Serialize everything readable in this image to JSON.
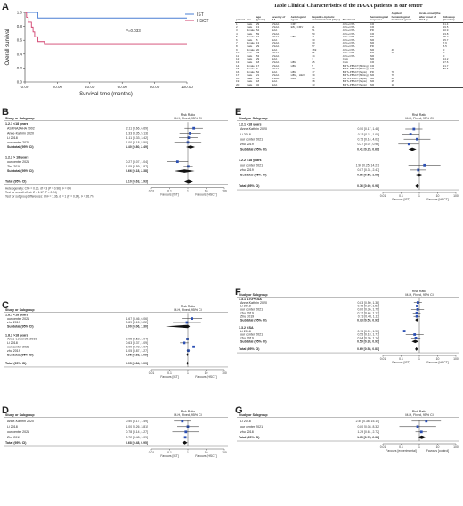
{
  "panel_a": {
    "label": "A",
    "y_axis_label": "Overall survival",
    "x_axis_label": "Survival time (months)",
    "y_ticks": [
      "0.0",
      "0.2",
      "0.4",
      "0.6",
      "0.8",
      "1.0"
    ],
    "x_ticks": [
      "0.00",
      "20.00",
      "40.00",
      "60.00",
      "80.00",
      "100.00"
    ],
    "p_value": "P=0.033",
    "legend": [
      {
        "name": "IST",
        "color": "#4a7fd4"
      },
      {
        "name": "HSCT",
        "color": "#d2416e"
      }
    ],
    "chart_data": {
      "type": "line",
      "xlabel": "Survival time (months)",
      "ylabel": "Overall survival",
      "xlim": [
        0,
        100
      ],
      "ylim": [
        0,
        1
      ],
      "series": [
        {
          "name": "IST",
          "color": "#4a7fd4",
          "x": [
            0,
            3,
            8,
            30,
            60,
            100
          ],
          "y": [
            1,
            1,
            0.92,
            0.92,
            0.92,
            0.92
          ]
        },
        {
          "name": "HSCT",
          "color": "#d2416e",
          "x": [
            0,
            1,
            2,
            4,
            5,
            6,
            8,
            12,
            20,
            100
          ],
          "y": [
            1,
            0.93,
            0.86,
            0.79,
            0.72,
            0.65,
            0.58,
            0.55,
            0.55,
            0.55
          ]
        }
      ]
    }
  },
  "table": {
    "title": "Table Clinical Characteristics of the HAAA patients in our center",
    "headers": [
      "patient",
      "sex",
      "age (years)",
      "severity of AA",
      "Aetiological agent",
      "Hepatitis-Aplastic anemia interval (days)",
      "Treatment",
      "hematological response",
      "Applied hematological treatment grade",
      "Acute-onset (the after onset of HAAA)",
      "follow up (months)"
    ],
    "rows": [
      [
        "1",
        "male",
        "29",
        "VSAA",
        "CMV",
        "",
        "ATG+CSA",
        "CR",
        "",
        "",
        "41.4"
      ],
      [
        "2",
        "male",
        "13",
        "VSAA",
        "EB、CMV",
        "21",
        "ATG+CSA",
        "CR",
        "",
        "",
        "19.5"
      ],
      [
        "3",
        "female",
        "54",
        "SAA",
        "",
        "51",
        "ATG+CSA",
        "PR",
        "",
        "",
        "10.9"
      ],
      [
        "4",
        "male",
        "59",
        "VSAA",
        "",
        "50",
        "ATG+CSA",
        "CR",
        "",
        "",
        "23.8"
      ],
      [
        "5",
        "female",
        "16",
        "VSAA",
        "HBV",
        "11",
        "ATG+CSA",
        "PR",
        "",
        "",
        "25.2"
      ],
      [
        "6",
        "male",
        "5",
        "SAA",
        "",
        "30",
        "ATG+CSA",
        "NR",
        "",
        "",
        "15.7"
      ],
      [
        "7",
        "female",
        "13",
        "VSAA",
        "",
        "30",
        "ATG+CSA",
        "NR",
        "",
        "",
        "7.9"
      ],
      [
        "8",
        "male",
        "29",
        "VSAA",
        "",
        "57",
        "ATG+CSA",
        "PR",
        "",
        "",
        "5.5"
      ],
      [
        "9",
        "female",
        "20",
        "SAA",
        "",
        "169",
        "ATG+CSA",
        "NR",
        "46",
        "",
        "0"
      ],
      [
        "10",
        "male",
        "48",
        "VSAA",
        "",
        "66",
        "ATG+CSA",
        "NR",
        "20",
        "",
        "0"
      ],
      [
        "11",
        "male",
        "53",
        "VSAA",
        "",
        "14",
        "ATG+CSA",
        "NR",
        "",
        "",
        "0"
      ],
      [
        "12",
        "male",
        "29",
        "SAA",
        "",
        "7",
        "CSA",
        "NR",
        "",
        "",
        "14.2"
      ],
      [
        "13",
        "male",
        "18",
        "VSAA",
        "HBV",
        "25",
        "CSA",
        "CR",
        "",
        "",
        "27.6"
      ],
      [
        "14",
        "female",
        "17",
        "VSAA",
        "HBV",
        "5",
        "BMT+PBSCT(Sibling)",
        "CR",
        "",
        "",
        "21.7"
      ],
      [
        "15",
        "female",
        "9",
        "VSAA",
        "",
        "30",
        "BMT+PBSCT(Sibling)",
        "CR",
        "",
        "",
        "80.6"
      ],
      [
        "16",
        "female",
        "52",
        "SAA",
        "HBV",
        "17",
        "BMT+PBSCT(haplo)",
        "PR",
        "78",
        "",
        ""
      ],
      [
        "17",
        "male",
        "21",
        "VSAA",
        "HBV、HEV",
        "79",
        "BMT+PBSCT(Sibling)",
        "NR",
        "76",
        "",
        ""
      ],
      [
        "18",
        "male",
        "44",
        "VSAA",
        "HBV",
        "33",
        "BMT+PBSCT(haplo)",
        "NR",
        "28",
        "",
        ""
      ],
      [
        "19",
        "male",
        "18",
        "SAA",
        "",
        "38",
        "BMT+PBSCT(haplo)",
        "NR",
        "25",
        "",
        ""
      ],
      [
        "20",
        "male",
        "32",
        "SAA",
        "",
        "13",
        "BMT+PBSCT(haplo)",
        "NR",
        "18",
        "",
        ""
      ]
    ]
  },
  "panel_b": {
    "label": "B",
    "chart_data": {
      "type": "forest",
      "xlabel_left": "Favours [IST]",
      "xlabel_right": "Favours [HSCT]",
      "xticks": [
        "0.01",
        "0.1",
        "1",
        "10",
        "100"
      ],
      "groups": [
        {
          "name": "1.2.1 <18 years",
          "studies": [
            {
              "study": "ASRNAZAHA 2002",
              "rr": 2.11,
              "lo": 0.66,
              "hi": 6.69
            },
            {
              "study": "Anne-Kathrin 2020",
              "rr": 1.33,
              "lo": 0.35,
              "hi": 5.13
            },
            {
              "study": "Li 2018",
              "rr": 1.11,
              "lo": 0.33,
              "hi": 3.42
            },
            {
              "study": "our center 2021",
              "rr": 1.0,
              "lo": 0.18,
              "hi": 5.5
            }
          ],
          "subtotal": {
            "rr": 1.4,
            "lo": 0.8,
            "hi": 2.49
          },
          "label": "Subtotal (95% CI)"
        },
        {
          "name": "1.2.2 > 18 years",
          "studies": [
            {
              "study": "our center 2021",
              "rr": 0.27,
              "lo": 0.07,
              "hi": 1.04
            },
            {
              "study": "Zhu 2019",
              "rr": 1.05,
              "lo": 0.59,
              "hi": 1.87
            }
          ],
          "subtotal": {
            "rr": 0.66,
            "lo": 0.18,
            "hi": 2.38
          },
          "label": "Subtotal (95% CI)"
        }
      ],
      "total": {
        "rr": 1.1,
        "lo": 0.63,
        "hi": 1.93
      },
      "total_label": "Total (95% CI)"
    },
    "header": {
      "study": "Study or Subgroup",
      "ist": "IST",
      "hsct": "HSCT",
      "events": "Events",
      "total": "Total",
      "weight": "Weight",
      "rr": "Risk Ratio",
      "rr_sub": "M-H, Fixed, 95% CI"
    },
    "heterogeneity": [
      "Heterogeneity: Chi² = 0.30, df = 3 (P = 0.96); I² = 0%",
      "Test for overall effect: Z = 1.17 (P = 0.24)",
      "Test for subgroup differences: Chi² = 1.36, df = 1 (P = 0.24), I² = 26.7%"
    ]
  },
  "panel_c": {
    "label": "C",
    "chart_data": {
      "type": "forest",
      "xlabel_left": "Favours [IST]",
      "xlabel_right": "Favours [HSCT]",
      "xticks": [
        "0.01",
        "0.1",
        "1",
        "10",
        "100"
      ],
      "groups": [
        {
          "name": "1.8.1 <18 years",
          "studies": [
            {
              "study": "our center 2021",
              "rr": 1.67,
              "lo": 0.46,
              "hi": 6.06
            },
            {
              "study": "zhu 2019",
              "rr": 0.89,
              "lo": 0.15,
              "hi": 5.22
            }
          ],
          "subtotal": {
            "rr": 1.0,
            "lo": 0.06,
            "hi": 1.3
          },
          "label": "Subtotal (95% CI)"
        },
        {
          "name": "1.8.2 >18 years",
          "studies": [
            {
              "study": "Anne-Loweroth 2010",
              "rr": 0.95,
              "lo": 0.52,
              "hi": 1.04
            },
            {
              "study": "Li 2018",
              "rr": 0.63,
              "lo": 0.37,
              "hi": 1.09
            },
            {
              "study": "our center 2021",
              "rr": 2.09,
              "lo": 0.72,
              "hi": 6.07
            },
            {
              "study": "zhu 2019",
              "rr": 1.05,
              "lo": 0.87,
              "hi": 1.27
            }
          ],
          "subtotal": {
            "rr": 0.95,
            "lo": 0.83,
            "hi": 1.09
          },
          "label": "Subtotal (95% CI)"
        }
      ],
      "total": {
        "rr": 0.95,
        "lo": 0.84,
        "hi": 1.09
      },
      "total_label": "Total (95% CI)"
    }
  },
  "panel_d": {
    "label": "D",
    "chart_data": {
      "type": "forest",
      "xlabel_left": "Favours [IST]",
      "xlabel_right": "Favours [HSCT]",
      "xticks": [
        "0.01",
        "0.1",
        "1",
        "10",
        "100"
      ],
      "groups": [
        {
          "name": "",
          "studies": [
            {
              "study": "Anne-Kathrin 2020",
              "rr": 0.5,
              "lo": 0.17,
              "hi": 1.49
            },
            {
              "study": "Li 2018",
              "rr": 1.0,
              "lo": 0.26,
              "hi": 3.81
            },
            {
              "study": "our center 2021",
              "rr": 0.78,
              "lo": 0.14,
              "hi": 4.27
            },
            {
              "study": "Zhu 2019",
              "rr": 0.72,
              "lo": 0.48,
              "hi": 1.09
            }
          ]
        }
      ],
      "total": {
        "rr": 0.68,
        "lo": 0.48,
        "hi": 0.95
      },
      "total_label": "Total (95% CI)"
    }
  },
  "panel_e": {
    "label": "E",
    "chart_data": {
      "type": "forest",
      "xlabel_left": "Favours [IST]",
      "xlabel_right": "Favours [HSCT]",
      "xticks": [
        "0.01",
        "0.1",
        "1",
        "10",
        "100"
      ],
      "groups": [
        {
          "name": "1.2.1 <18 years",
          "studies": [
            {
              "study": "Anne-Kathrin 2020",
              "rr": 0.5,
              "lo": 0.17,
              "hi": 1.48
            },
            {
              "study": "Li 2018",
              "rr": 0.33,
              "lo": 0.11,
              "hi": 1.0
            },
            {
              "study": "our center 2021",
              "rr": 0.75,
              "lo": 0.14,
              "hi": 4.02
            },
            {
              "study": "zhu 2019",
              "rr": 0.27,
              "lo": 0.07,
              "hi": 0.96
            }
          ],
          "subtotal": {
            "rr": 0.41,
            "lo": 0.25,
            "hi": 0.69
          },
          "label": "Subtotal (95% CI)"
        },
        {
          "name": "1.2.2 >18 years",
          "studies": [
            {
              "study": "our center 2021",
              "rr": 1.9,
              "lo": 0.25,
              "hi": 14.27
            },
            {
              "study": "zhu 2019",
              "rr": 0.87,
              "lo": 0.31,
              "hi": 2.47
            }
          ],
          "subtotal": {
            "rr": 0.96,
            "lo": 0.55,
            "hi": 1.66
          },
          "label": "Subtotal (95% CI)"
        }
      ],
      "total": {
        "rr": 0.76,
        "lo": 0.6,
        "hi": 0.98
      },
      "total_label": "Total (95% CI)"
    }
  },
  "panel_f": {
    "label": "F",
    "chart_data": {
      "type": "forest",
      "xlabel_left": "Favours [IST]",
      "xlabel_right": "Favours [HSCT]",
      "xticks": [
        "0.01",
        "0.1",
        "1",
        "10",
        "100"
      ],
      "groups": [
        {
          "name": "1.3.1 ATG+CSA",
          "studies": [
            {
              "study": "Anne-Kathrin 2020",
              "rr": 0.83,
              "lo": 0.5,
              "hi": 1.38
            },
            {
              "study": "Li 2018",
              "rr": 0.75,
              "lo": 0.37,
              "hi": 1.51
            },
            {
              "study": "our center 2021",
              "rr": 0.8,
              "lo": 0.36,
              "hi": 1.79
            },
            {
              "study": "zhu 2019",
              "rr": 0.72,
              "lo": 0.44,
              "hi": 1.17
            },
            {
              "study": "Zhu 2019",
              "rr": 0.73,
              "lo": 0.48,
              "hi": 1.11
            }
          ],
          "subtotal": {
            "rr": 0.73,
            "lo": 0.59,
            "hi": 0.91
          },
          "label": "Subtotal (95% CI)"
        },
        {
          "name": "1.3.2 CSA",
          "studies": [
            {
              "study": "Li 2018",
              "rr": 0.15,
              "lo": 0.01,
              "hi": 1.9
            },
            {
              "study": "our center 2021",
              "rr": 0.55,
              "lo": 0.18,
              "hi": 1.71
            },
            {
              "study": "zhu 2019",
              "rr": 0.64,
              "lo": 0.36,
              "hi": 1.14
            }
          ],
          "subtotal": {
            "rr": 0.59,
            "lo": 0.38,
            "hi": 0.91
          },
          "label": "Subtotal (95% CI)"
        }
      ],
      "total": {
        "rr": 0.69,
        "lo": 0.58,
        "hi": 0.83
      },
      "total_label": "Total (95% CI)"
    }
  },
  "panel_g": {
    "label": "G",
    "header": {
      "study": "Study or Subgroup",
      "a": "ATG/ALG+CSA",
      "b": "CSA",
      "rr": "Risk Ratio",
      "rr_sub": "M-H, Fixed, 95% CI"
    },
    "chart_data": {
      "type": "forest",
      "xlabel_left": "Favours [experimental]",
      "xlabel_right": "Favours [control]",
      "xticks": [
        "0.01",
        "0.1",
        "1",
        "10",
        "100"
      ],
      "groups": [
        {
          "name": "",
          "studies": [
            {
              "study": "Li 2018",
              "rr": 2.4,
              "lo": 0.38,
              "hi": 15.14
            },
            {
              "study": "our center 2021",
              "rr": 0.8,
              "lo": 0.08,
              "hi": 8.32
            },
            {
              "study": "zhu 2018",
              "rr": 1.29,
              "lo": 0.61,
              "hi": 2.72
            }
          ]
        }
      ],
      "total": {
        "rr": 1.35,
        "lo": 0.78,
        "hi": 2.36
      },
      "total_label": "Total (95% CI)"
    }
  }
}
